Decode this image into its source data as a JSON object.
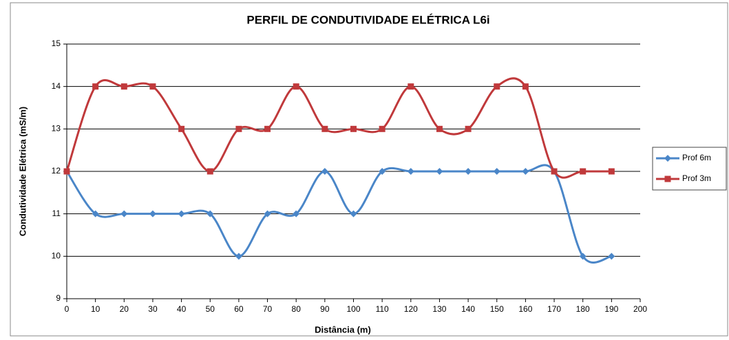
{
  "chart_data": {
    "type": "line",
    "title": "PERFIL DE CONDUTIVIDADE ELÉTRICA L6i",
    "x_label": "Distância (m)",
    "y_label": "Condutividade Elétrica (mS/m)",
    "x": [
      0,
      10,
      20,
      30,
      40,
      50,
      60,
      70,
      80,
      90,
      100,
      110,
      120,
      130,
      140,
      150,
      160,
      170,
      180,
      190
    ],
    "series": [
      {
        "name": "Prof 6m",
        "color": "#4a86c8",
        "marker": "diamond",
        "values": [
          12,
          11,
          11,
          11,
          11,
          11,
          10,
          11,
          11,
          12,
          11,
          12,
          12,
          12,
          12,
          12,
          12,
          12,
          10,
          10
        ]
      },
      {
        "name": "Prof 3m",
        "color": "#c0393b",
        "marker": "square",
        "values": [
          12,
          14,
          14,
          14,
          13,
          12,
          13,
          13,
          14,
          13,
          13,
          13,
          14,
          13,
          13,
          14,
          14,
          12,
          12,
          12
        ]
      }
    ],
    "xlim": [
      0,
      200
    ],
    "xticks": [
      0,
      10,
      20,
      30,
      40,
      50,
      60,
      70,
      80,
      90,
      100,
      110,
      120,
      130,
      140,
      150,
      160,
      170,
      180,
      190,
      200
    ],
    "ylim": [
      9,
      15
    ],
    "yticks": [
      9,
      10,
      11,
      12,
      13,
      14,
      15
    ],
    "grid": true,
    "smooth": true,
    "legend": "right"
  }
}
